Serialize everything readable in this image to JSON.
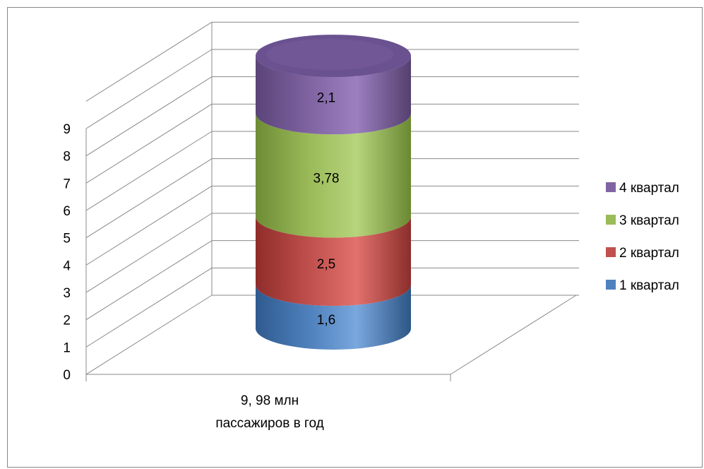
{
  "chart_data": {
    "type": "bar",
    "subtype": "3d-stacked-cylinder",
    "categories": [
      "9, 98 млн пассажиров в год"
    ],
    "category_lines": [
      "9, 98 млн",
      "пассажиров в год"
    ],
    "series": [
      {
        "name": "1 квартал",
        "values": [
          1.6
        ],
        "label": "1,6",
        "color": "#4F81BD"
      },
      {
        "name": "2 квартал",
        "values": [
          2.5
        ],
        "label": "2,5",
        "color": "#C0504D"
      },
      {
        "name": "3 квартал",
        "values": [
          3.78
        ],
        "label": "3,78",
        "color": "#9BBB59"
      },
      {
        "name": "4 квартал",
        "values": [
          2.1
        ],
        "label": "2,1",
        "color": "#8064A2"
      }
    ],
    "y_ticks": [
      "0",
      "1",
      "2",
      "3",
      "4",
      "5",
      "6",
      "7",
      "8",
      "9"
    ],
    "ylim": [
      0,
      9
    ],
    "grid": true,
    "legend_position": "right"
  }
}
